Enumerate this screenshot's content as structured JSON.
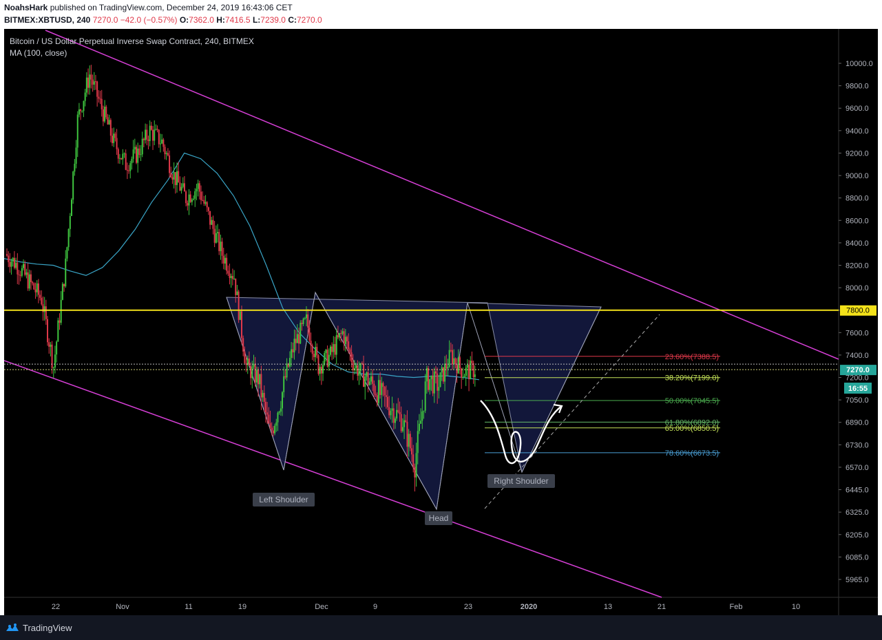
{
  "header": {
    "author": "NoahsHark",
    "published_text": "published on TradingView.com, December 24, 2019 16:43:06 CET",
    "symbol": "BITMEX:XBTUSD, 240",
    "last": "7270.0",
    "change": "−42.0 (−0.57%)",
    "o_label": "O:",
    "o_value": "7362.0",
    "h_label": "H:",
    "h_value": "7416.5",
    "l_label": "L:",
    "l_value": "7239.0",
    "c_label": "C:",
    "c_value": "7270.0"
  },
  "legend": {
    "title": "Bitcoin / US Dollar Perpetual Inverse Swap Contract, 240, BITMEX",
    "indicator": "MA (100, close)"
  },
  "chart_data": {
    "type": "candlestick",
    "yaxis_ticks": [
      10000.0,
      9800.0,
      9600.0,
      9400.0,
      9200.0,
      9000.0,
      8800.0,
      8600.0,
      8400.0,
      8200.0,
      8000.0,
      7800.0,
      7600.0,
      7400.0,
      7200.0,
      7050.0,
      6890.0,
      6730.0,
      6570.0,
      6445.0,
      6325.0,
      6205.0,
      6085.0,
      5965.0
    ],
    "yaxis_labels": [
      "10000.0",
      "9800.0",
      "9600.0",
      "9400.0",
      "9200.0",
      "9000.0",
      "8800.0",
      "8600.0",
      "8400.0",
      "8200.0",
      "8000.0",
      "7800.0",
      "7600.0",
      "7400.0",
      "7200.0",
      "7050.0",
      "6890.0",
      "6730.0",
      "6570.0",
      "6445.0",
      "6325.0",
      "6205.0",
      "6085.0",
      "5965.0"
    ],
    "xaxis_labels": [
      "22",
      "Nov",
      "11",
      "19",
      "Dec",
      "9",
      "23",
      "2020",
      "13",
      "21",
      "Feb",
      "10"
    ],
    "price_badges": {
      "resistance": "7800.0",
      "last": "7270.0",
      "countdown": "16:55"
    },
    "resistance": 7800,
    "last_price": 7270,
    "fib_levels": [
      {
        "label": "23.60%(7388.5)",
        "value": 7388.5,
        "color": "#e0394a"
      },
      {
        "label": "38.20%(7199.0)",
        "value": 7199.0,
        "color": "#c8e65a"
      },
      {
        "label": "50.00%(7045.5)",
        "value": 7045.5,
        "color": "#4caf50"
      },
      {
        "label": "61.80%(6892.0)",
        "value": 6892.0,
        "color": "#66bb6a"
      },
      {
        "label": "65.00%(6850.5)",
        "value": 6850.5,
        "color": "#c8e65a"
      },
      {
        "label": "78.60%(6673.5)",
        "value": 6673.5,
        "color": "#4a9fd5"
      }
    ],
    "annotations": [
      "Left Shoulder",
      "Head",
      "Right Shoulder"
    ],
    "ma_series": [
      8260,
      8230,
      8210,
      8200,
      8150,
      8110,
      8180,
      8330,
      8520,
      8760,
      8960,
      9200,
      9150,
      9020,
      8820,
      8550,
      8200,
      7820,
      7600,
      7450,
      7320,
      7250,
      7230,
      7230,
      7210,
      7200,
      7210,
      7215,
      7200,
      7185
    ],
    "candle_closes": [
      8300,
      8200,
      8050,
      7900,
      7300,
      8200,
      9500,
      9900,
      9600,
      9300,
      9100,
      9200,
      9400,
      9300,
      9000,
      8800,
      8900,
      8600,
      8300,
      8100,
      7300,
      7200,
      6800,
      7100,
      7500,
      7700,
      7300,
      7400,
      7600,
      7300,
      7200,
      7100,
      7000,
      6900,
      6600,
      7200,
      7150,
      7400,
      7250,
      7270
    ]
  }
}
